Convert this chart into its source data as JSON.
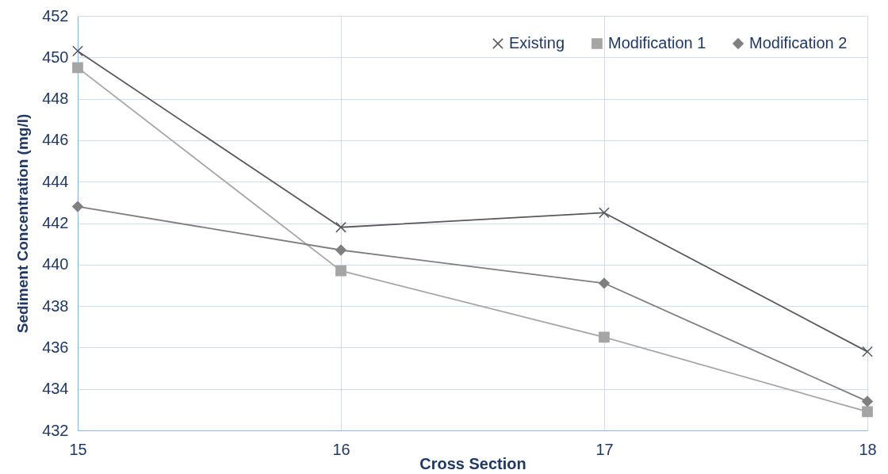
{
  "chart_data": {
    "type": "line",
    "xlabel": "Cross Section",
    "ylabel": "Sediment Concentration (mg/l)",
    "x": [
      15,
      16,
      17,
      18
    ],
    "xlim": [
      15,
      18
    ],
    "xticks": [
      15,
      16,
      17,
      18
    ],
    "ylim": [
      432,
      452
    ],
    "yticks": [
      432,
      434,
      436,
      438,
      440,
      442,
      444,
      446,
      448,
      450,
      452
    ],
    "grid": true,
    "legend": "top right",
    "series": [
      {
        "name": "Existing",
        "color": "#595959",
        "marker": "cross",
        "values": [
          450.3,
          441.8,
          442.5,
          435.8
        ]
      },
      {
        "name": "Modification 1",
        "color": "#a5a5a5",
        "marker": "square",
        "values": [
          449.5,
          439.7,
          436.5,
          432.9
        ]
      },
      {
        "name": "Modification 2",
        "color": "#7f7f7f",
        "marker": "diamond",
        "values": [
          442.8,
          440.7,
          439.1,
          433.4
        ]
      }
    ]
  }
}
